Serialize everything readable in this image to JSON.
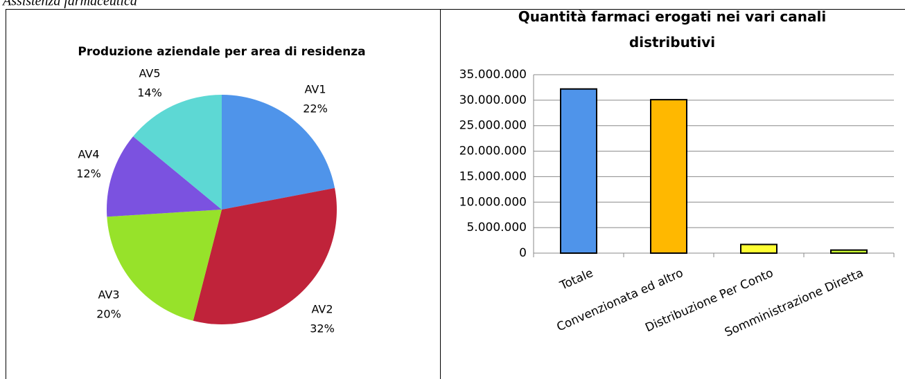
{
  "page_title": "Assistenza farmaceutica",
  "chart_data": [
    {
      "type": "pie",
      "title": "Produzione aziendale per area di residenza",
      "categories": [
        "AV1",
        "AV2",
        "AV3",
        "AV4",
        "AV5"
      ],
      "values": [
        22,
        32,
        20,
        12,
        14
      ],
      "value_labels": [
        "22%",
        "32%",
        "20%",
        "12%",
        "14%"
      ],
      "colors": [
        "#4f94ea",
        "#c0233a",
        "#97e22a",
        "#7b52e0",
        "#5dd8d4"
      ]
    },
    {
      "type": "bar",
      "title": "Quantità farmaci erogati nei vari canali distributivi",
      "categories": [
        "Totale",
        "Convenzionata ed altro",
        "Distribuzione Per Conto",
        "Somministrazione Diretta"
      ],
      "values": [
        32200000,
        30100000,
        1700000,
        600000
      ],
      "colors": [
        "#4f94ea",
        "#ffb800",
        "#ffff33",
        "#ccff33"
      ],
      "ylim": [
        0,
        35000000
      ],
      "yticks": [
        0,
        {
          "value": 5000000,
          "label": "5.000.000"
        },
        {
          "value": 10000000,
          "label": "10.000.000"
        },
        {
          "value": 15000000,
          "label": "15.000.000"
        },
        {
          "value": 20000000,
          "label": "20.000.000"
        },
        {
          "value": 25000000,
          "label": "25.000.000"
        },
        {
          "value": 30000000,
          "label": "30.000.000"
        },
        {
          "value": 35000000,
          "label": "35.000.000"
        }
      ],
      "grid": true
    }
  ]
}
